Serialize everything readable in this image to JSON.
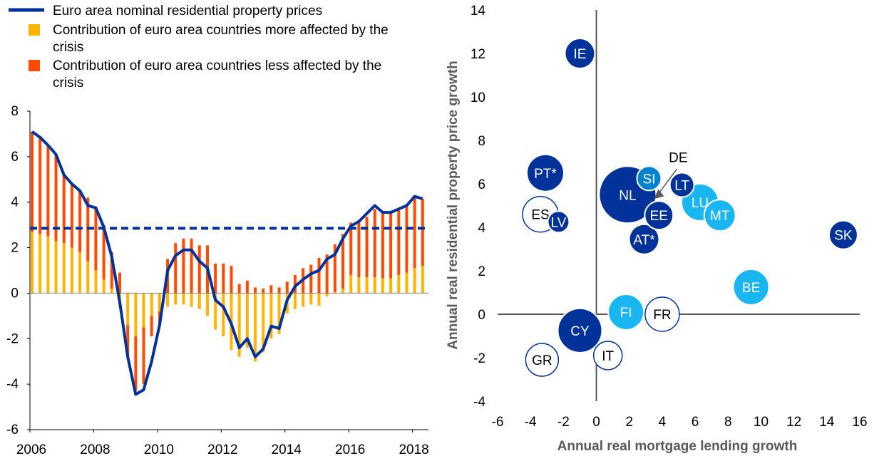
{
  "chart_data": [
    {
      "type": "bar",
      "title": "",
      "legend": [
        {
          "label": "Euro area nominal residential property prices",
          "color": "#003299",
          "kind": "line"
        },
        {
          "label": "Contribution of euro area countries more affected by the crisis",
          "color": "#FFB400",
          "kind": "bar"
        },
        {
          "label": "Contribution of euro area countries less affected by the crisis",
          "color": "#FF4B00",
          "kind": "bar"
        }
      ],
      "legend_position": "top-left",
      "x_ticks": [
        "2006",
        "2008",
        "2010",
        "2012",
        "2014",
        "2016",
        "2018"
      ],
      "y_ticks": [
        "-6",
        "-4",
        "-2",
        "0",
        "2",
        "4",
        "6",
        "8"
      ],
      "xlim": [
        2006.0,
        2018.5
      ],
      "ylim": [
        -6,
        8
      ],
      "grid": false,
      "average_line": {
        "value": 2.85,
        "style": "dashed",
        "color": "#003299"
      },
      "x": [
        2006.0,
        2006.25,
        2006.5,
        2006.75,
        2007.0,
        2007.25,
        2007.5,
        2007.75,
        2008.0,
        2008.25,
        2008.5,
        2008.75,
        2009.0,
        2009.25,
        2009.5,
        2009.75,
        2010.0,
        2010.25,
        2010.5,
        2010.75,
        2011.0,
        2011.25,
        2011.5,
        2011.75,
        2012.0,
        2012.25,
        2012.5,
        2012.75,
        2013.0,
        2013.25,
        2013.5,
        2013.75,
        2014.0,
        2014.25,
        2014.5,
        2014.75,
        2015.0,
        2015.25,
        2015.5,
        2015.75,
        2016.0,
        2016.25,
        2016.5,
        2016.75,
        2017.0,
        2017.25,
        2017.5,
        2017.75,
        2018.0,
        2018.25
      ],
      "series": [
        {
          "name": "Contribution of euro area countries more affected by the crisis",
          "values": [
            2.7,
            2.6,
            2.5,
            2.3,
            2.2,
            2.0,
            1.8,
            1.4,
            1.0,
            0.6,
            0.2,
            -0.6,
            -1.4,
            -1.9,
            -1.5,
            -1.0,
            -0.8,
            -0.6,
            -0.5,
            -0.5,
            -0.6,
            -0.7,
            -1.0,
            -1.6,
            -1.9,
            -2.5,
            -2.8,
            -2.4,
            -3.0,
            -2.6,
            -2.0,
            -1.8,
            -0.9,
            -0.7,
            -0.6,
            -0.5,
            -0.55,
            -0.15,
            0.05,
            0.2,
            0.8,
            0.7,
            0.7,
            0.7,
            0.65,
            0.65,
            0.8,
            0.9,
            1.1,
            1.2
          ]
        },
        {
          "name": "Contribution of euro area countries less affected by the crisis",
          "values": [
            4.4,
            4.3,
            4.0,
            3.8,
            3.0,
            2.8,
            2.7,
            2.8,
            2.8,
            2.4,
            1.6,
            0.9,
            -1.4,
            -2.4,
            -2.5,
            -0.9,
            -0.6,
            1.5,
            2.2,
            2.4,
            2.4,
            2.1,
            2.1,
            1.3,
            1.3,
            1.2,
            0.4,
            0.55,
            0.25,
            0.2,
            0.35,
            0.25,
            0.5,
            0.8,
            1.1,
            1.25,
            1.55,
            1.7,
            2.1,
            2.4,
            2.3,
            2.5,
            2.65,
            3.0,
            2.95,
            2.9,
            2.9,
            2.9,
            3.15,
            2.95
          ]
        },
        {
          "name": "Euro area nominal residential property prices",
          "kind": "line",
          "values": [
            7.1,
            6.85,
            6.5,
            6.1,
            5.2,
            4.8,
            4.5,
            3.85,
            3.75,
            2.9,
            1.6,
            -0.4,
            -2.8,
            -4.45,
            -4.25,
            -3.0,
            -1.4,
            1.0,
            1.65,
            1.9,
            1.9,
            1.4,
            1.1,
            -0.3,
            -0.6,
            -1.35,
            -2.4,
            -2.0,
            -2.8,
            -2.45,
            -1.45,
            -1.55,
            -0.3,
            0.3,
            0.6,
            0.85,
            1.0,
            1.5,
            1.7,
            2.4,
            2.95,
            3.15,
            3.5,
            3.85,
            3.55,
            3.55,
            3.7,
            3.85,
            4.25,
            4.15
          ]
        }
      ]
    },
    {
      "type": "scatter",
      "xlabel": "Annual real mortgage lending growth",
      "ylabel": "Annual real residential property price growth",
      "x_ticks": [
        "-6",
        "-4",
        "-2",
        "0",
        "2",
        "4",
        "6",
        "8",
        "10",
        "12",
        "14",
        "16"
      ],
      "y_ticks": [
        "-4",
        "-2",
        "0",
        "2",
        "4",
        "6",
        "8",
        "10",
        "12",
        "14"
      ],
      "xlim": [
        -6,
        16
      ],
      "ylim": [
        -4,
        14
      ],
      "grid": false,
      "annotation": {
        "text": "DE",
        "points_to": [
          3.5,
          5.3
        ]
      },
      "points": [
        {
          "label": "IE",
          "x": -1.0,
          "y": 12.0,
          "size": 1.05,
          "color": "#003299"
        },
        {
          "label": "PT*",
          "x": -3.1,
          "y": 6.5,
          "size": 1.3,
          "color": "#003299"
        },
        {
          "label": "ES",
          "x": -3.4,
          "y": 4.6,
          "size": 1.25,
          "color": "#FFFFFF"
        },
        {
          "label": "LV",
          "x": -2.3,
          "y": 4.25,
          "size": 0.75,
          "color": "#003299"
        },
        {
          "label": "NL",
          "x": 1.9,
          "y": 5.5,
          "size": 2.0,
          "color": "#003299"
        },
        {
          "label": "SI",
          "x": 3.2,
          "y": 6.25,
          "size": 0.85,
          "color": "#0083CC"
        },
        {
          "label": "LT",
          "x": 5.2,
          "y": 5.95,
          "size": 0.85,
          "color": "#003299"
        },
        {
          "label": "DE",
          "x": 3.5,
          "y": 5.3,
          "size": 0.5,
          "color": "#595959"
        },
        {
          "label": "EE",
          "x": 3.8,
          "y": 4.55,
          "size": 1.0,
          "color": "#003299"
        },
        {
          "label": "LU",
          "x": 6.3,
          "y": 5.15,
          "size": 1.3,
          "color": "#19B6F1"
        },
        {
          "label": "MT",
          "x": 7.5,
          "y": 4.55,
          "size": 1.1,
          "color": "#19B6F1"
        },
        {
          "label": "AT*",
          "x": 2.9,
          "y": 3.45,
          "size": 1.05,
          "color": "#003299"
        },
        {
          "label": "SK",
          "x": 15.0,
          "y": 3.65,
          "size": 1.0,
          "color": "#003299"
        },
        {
          "label": "BE",
          "x": 9.4,
          "y": 1.25,
          "size": 1.25,
          "color": "#19B6F1"
        },
        {
          "label": "FI",
          "x": 1.8,
          "y": 0.1,
          "size": 1.25,
          "color": "#19B6F1"
        },
        {
          "label": "FR",
          "x": 4.0,
          "y": 0.0,
          "size": 1.2,
          "color": "#FFFFFF"
        },
        {
          "label": "CY",
          "x": -1.0,
          "y": -0.75,
          "size": 1.55,
          "color": "#003299"
        },
        {
          "label": "IT",
          "x": 0.7,
          "y": -1.9,
          "size": 1.0,
          "color": "#FFFFFF"
        },
        {
          "label": "GR",
          "x": -3.3,
          "y": -2.1,
          "size": 1.15,
          "color": "#FFFFFF"
        }
      ]
    }
  ]
}
